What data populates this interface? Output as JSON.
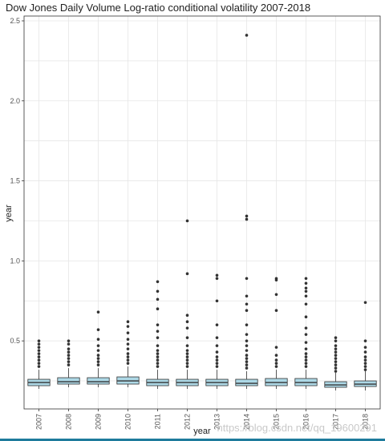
{
  "chart_data": {
    "type": "box",
    "title": "Dow Jones Daily Volume Log-ratio conditional volatility 2007-2018",
    "xlabel": "year",
    "ylabel": "year",
    "ylim": [
      0.17,
      2.5
    ],
    "yticks": [
      0.5,
      1.0,
      1.5,
      2.0,
      2.5
    ],
    "ytick_labels": [
      "0.5",
      "1.0",
      "1.5",
      "2.0",
      "2.5"
    ],
    "grid": true,
    "categories": [
      "2007",
      "2008",
      "2009",
      "2010",
      "2011",
      "2012",
      "2013",
      "2014",
      "2015",
      "2016",
      "2017",
      "2018"
    ],
    "boxes": [
      {
        "q1": 0.22,
        "median": 0.24,
        "q3": 0.26,
        "whisker_low": 0.2,
        "whisker_high": 0.32
      },
      {
        "q1": 0.23,
        "median": 0.245,
        "q3": 0.27,
        "whisker_low": 0.21,
        "whisker_high": 0.33
      },
      {
        "q1": 0.23,
        "median": 0.245,
        "q3": 0.27,
        "whisker_low": 0.21,
        "whisker_high": 0.33
      },
      {
        "q1": 0.23,
        "median": 0.25,
        "q3": 0.275,
        "whisker_low": 0.21,
        "whisker_high": 0.34
      },
      {
        "q1": 0.22,
        "median": 0.24,
        "q3": 0.26,
        "whisker_low": 0.2,
        "whisker_high": 0.32
      },
      {
        "q1": 0.22,
        "median": 0.24,
        "q3": 0.26,
        "whisker_low": 0.2,
        "whisker_high": 0.32
      },
      {
        "q1": 0.22,
        "median": 0.24,
        "q3": 0.26,
        "whisker_low": 0.2,
        "whisker_high": 0.32
      },
      {
        "q1": 0.22,
        "median": 0.235,
        "q3": 0.26,
        "whisker_low": 0.2,
        "whisker_high": 0.31
      },
      {
        "q1": 0.22,
        "median": 0.24,
        "q3": 0.265,
        "whisker_low": 0.2,
        "whisker_high": 0.32
      },
      {
        "q1": 0.22,
        "median": 0.24,
        "q3": 0.265,
        "whisker_low": 0.2,
        "whisker_high": 0.32
      },
      {
        "q1": 0.21,
        "median": 0.225,
        "q3": 0.245,
        "whisker_low": 0.19,
        "whisker_high": 0.3
      },
      {
        "q1": 0.215,
        "median": 0.23,
        "q3": 0.25,
        "whisker_low": 0.19,
        "whisker_high": 0.31
      }
    ],
    "outliers": [
      [
        0.34,
        0.36,
        0.38,
        0.4,
        0.42,
        0.44,
        0.46,
        0.48,
        0.5
      ],
      [
        0.35,
        0.37,
        0.39,
        0.41,
        0.43,
        0.45,
        0.48,
        0.5
      ],
      [
        0.35,
        0.37,
        0.39,
        0.41,
        0.44,
        0.47,
        0.51,
        0.57,
        0.68
      ],
      [
        0.36,
        0.38,
        0.4,
        0.42,
        0.45,
        0.48,
        0.51,
        0.55,
        0.59,
        0.62
      ],
      [
        0.34,
        0.36,
        0.38,
        0.4,
        0.42,
        0.44,
        0.47,
        0.52,
        0.56,
        0.6,
        0.7,
        0.76,
        0.81,
        0.87
      ],
      [
        0.34,
        0.36,
        0.38,
        0.4,
        0.42,
        0.44,
        0.47,
        0.52,
        0.58,
        0.62,
        0.66,
        0.92,
        1.25
      ],
      [
        0.34,
        0.36,
        0.38,
        0.4,
        0.43,
        0.47,
        0.52,
        0.6,
        0.75,
        0.89,
        0.91
      ],
      [
        0.33,
        0.35,
        0.37,
        0.39,
        0.41,
        0.44,
        0.47,
        0.5,
        0.54,
        0.6,
        0.69,
        0.73,
        0.78,
        0.89,
        1.26,
        1.28,
        2.41
      ],
      [
        0.34,
        0.36,
        0.38,
        0.41,
        0.46,
        0.69,
        0.79,
        0.88,
        0.89
      ],
      [
        0.34,
        0.36,
        0.38,
        0.4,
        0.42,
        0.45,
        0.49,
        0.54,
        0.58,
        0.65,
        0.73,
        0.78,
        0.81,
        0.83,
        0.86,
        0.89
      ],
      [
        0.31,
        0.33,
        0.35,
        0.37,
        0.39,
        0.41,
        0.43,
        0.45,
        0.47,
        0.5,
        0.52
      ],
      [
        0.32,
        0.34,
        0.36,
        0.38,
        0.4,
        0.43,
        0.46,
        0.5,
        0.74
      ]
    ],
    "colors": {
      "box_fill": "#add8e6",
      "stroke": "#333333",
      "point": "#333333",
      "grid": "#e6e6e6",
      "panel_border": "#333333",
      "bottom_bar": "#1e7b9c"
    }
  },
  "watermark": "https://blog.csdn.net/qq_19600291"
}
